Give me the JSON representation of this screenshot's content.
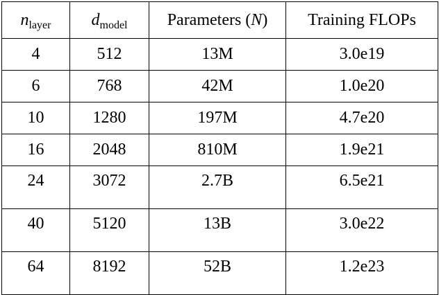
{
  "table": {
    "headers": [
      {
        "main": "n",
        "sub": "layer"
      },
      {
        "main": "d",
        "sub": "model"
      },
      {
        "text": "Parameters (",
        "var": "N",
        "close": ")"
      },
      {
        "text": "Training FLOPs"
      }
    ],
    "rows": [
      {
        "n_layer": "4",
        "d_model": "512",
        "parameters": "13M",
        "flops": "3.0e19"
      },
      {
        "n_layer": "6",
        "d_model": "768",
        "parameters": "42M",
        "flops": "1.0e20"
      },
      {
        "n_layer": "10",
        "d_model": "1280",
        "parameters": "197M",
        "flops": "4.7e20"
      },
      {
        "n_layer": "16",
        "d_model": "2048",
        "parameters": "810M",
        "flops": "1.9e21"
      },
      {
        "n_layer": "24",
        "d_model": "3072",
        "parameters": "2.7B",
        "flops": "6.5e21"
      },
      {
        "n_layer": "40",
        "d_model": "5120",
        "parameters": "13B",
        "flops": "3.0e22"
      },
      {
        "n_layer": "64",
        "d_model": "8192",
        "parameters": "52B",
        "flops": "1.2e23"
      }
    ]
  }
}
